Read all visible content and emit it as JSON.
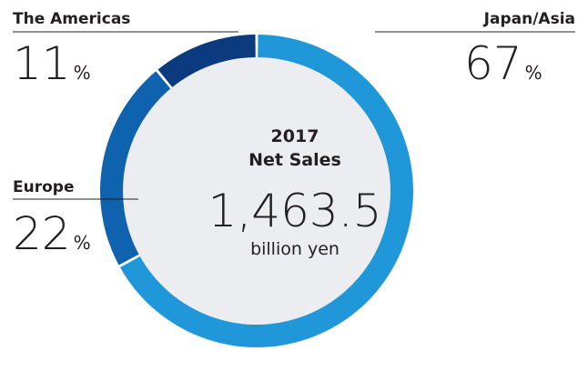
{
  "chart_data": {
    "type": "pie",
    "categories": [
      "Japan/Asia",
      "Europe",
      "The Americas"
    ],
    "values": [
      67,
      22,
      11
    ],
    "unit": "%",
    "colors": [
      "#1f97d9",
      "#0f62ad",
      "#0c3a7f"
    ],
    "background_color": "#ebedf0",
    "center": {
      "year": "2017",
      "title": "Net Sales",
      "value": "1,463.5",
      "unit": "billion yen"
    }
  }
}
